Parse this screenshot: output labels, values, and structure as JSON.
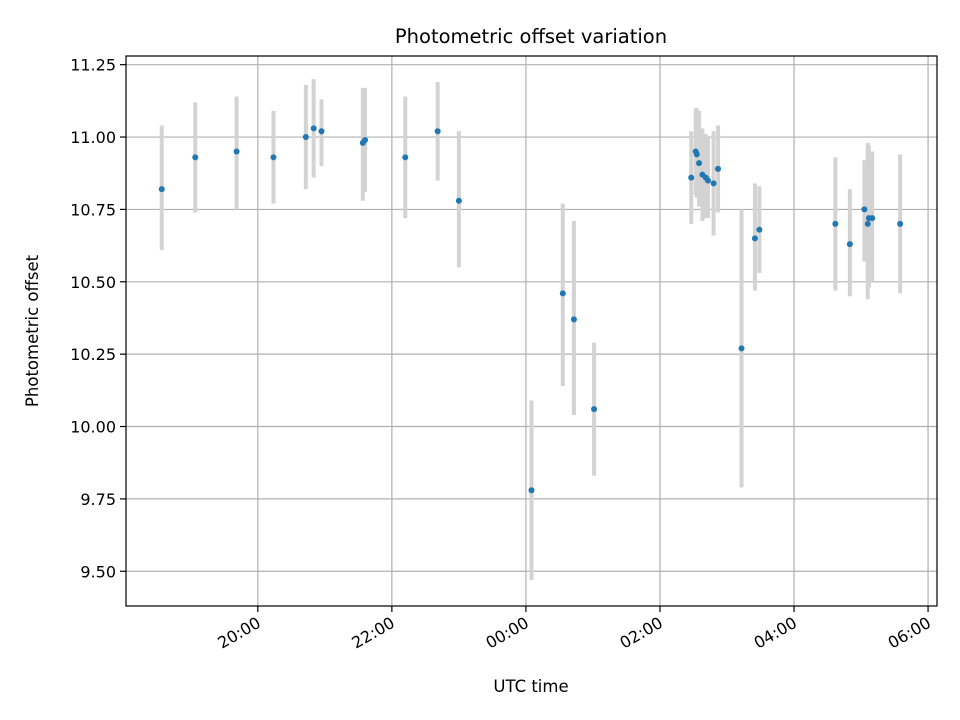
{
  "chart_data": {
    "type": "scatter",
    "title": "Photometric offset variation",
    "xlabel": "UTC time",
    "ylabel": "Photometric offset",
    "grid": true,
    "x_axis_format": "HH:MM",
    "xlim": [
      "18:02",
      "06:08"
    ],
    "ylim": [
      9.38,
      11.28
    ],
    "x_ticks": [
      "20:00",
      "22:00",
      "00:00",
      "02:00",
      "04:00",
      "06:00"
    ],
    "y_ticks": [
      "9.50",
      "9.75",
      "10.00",
      "10.25",
      "10.50",
      "10.75",
      "11.00",
      "11.25"
    ],
    "colors": {
      "point": "#1f77b4",
      "errorbar": "#d3d3d3",
      "grid": "#b0b0b0"
    },
    "series": [
      {
        "points": [
          {
            "x": "18:34",
            "y": 10.82,
            "ylow": 10.61,
            "yhigh": 11.04
          },
          {
            "x": "19:04",
            "y": 10.93,
            "ylow": 10.74,
            "yhigh": 11.12
          },
          {
            "x": "19:41",
            "y": 10.95,
            "ylow": 10.75,
            "yhigh": 11.14
          },
          {
            "x": "20:14",
            "y": 10.93,
            "ylow": 10.77,
            "yhigh": 11.09
          },
          {
            "x": "20:43",
            "y": 11.0,
            "ylow": 10.82,
            "yhigh": 11.18
          },
          {
            "x": "20:50",
            "y": 11.03,
            "ylow": 10.86,
            "yhigh": 11.2
          },
          {
            "x": "20:57",
            "y": 11.02,
            "ylow": 10.9,
            "yhigh": 11.13
          },
          {
            "x": "21:34",
            "y": 10.98,
            "ylow": 10.78,
            "yhigh": 11.17
          },
          {
            "x": "21:36",
            "y": 10.99,
            "ylow": 10.81,
            "yhigh": 11.17
          },
          {
            "x": "22:12",
            "y": 10.93,
            "ylow": 10.72,
            "yhigh": 11.14
          },
          {
            "x": "22:41",
            "y": 11.02,
            "ylow": 10.85,
            "yhigh": 11.19
          },
          {
            "x": "23:00",
            "y": 10.78,
            "ylow": 10.55,
            "yhigh": 11.02
          },
          {
            "x": "00:05",
            "y": 9.78,
            "ylow": 9.47,
            "yhigh": 10.09
          },
          {
            "x": "00:33",
            "y": 10.46,
            "ylow": 10.14,
            "yhigh": 10.77
          },
          {
            "x": "00:43",
            "y": 10.37,
            "ylow": 10.04,
            "yhigh": 10.71
          },
          {
            "x": "01:01",
            "y": 10.06,
            "ylow": 9.83,
            "yhigh": 10.29
          },
          {
            "x": "02:28",
            "y": 10.86,
            "ylow": 10.7,
            "yhigh": 11.02
          },
          {
            "x": "02:32",
            "y": 10.95,
            "ylow": 10.8,
            "yhigh": 11.1
          },
          {
            "x": "02:33",
            "y": 10.94,
            "ylow": 10.79,
            "yhigh": 11.1
          },
          {
            "x": "02:35",
            "y": 10.91,
            "ylow": 10.76,
            "yhigh": 11.09
          },
          {
            "x": "02:38",
            "y": 10.87,
            "ylow": 10.71,
            "yhigh": 11.03
          },
          {
            "x": "02:41",
            "y": 10.86,
            "ylow": 10.72,
            "yhigh": 11.01
          },
          {
            "x": "02:43",
            "y": 10.85,
            "ylow": 10.72,
            "yhigh": 11.0
          },
          {
            "x": "02:48",
            "y": 10.84,
            "ylow": 10.66,
            "yhigh": 11.02
          },
          {
            "x": "02:52",
            "y": 10.89,
            "ylow": 10.74,
            "yhigh": 11.04
          },
          {
            "x": "03:13",
            "y": 10.27,
            "ylow": 9.79,
            "yhigh": 10.75
          },
          {
            "x": "03:25",
            "y": 10.65,
            "ylow": 10.47,
            "yhigh": 10.84
          },
          {
            "x": "03:29",
            "y": 10.68,
            "ylow": 10.53,
            "yhigh": 10.83
          },
          {
            "x": "04:37",
            "y": 10.7,
            "ylow": 10.47,
            "yhigh": 10.93
          },
          {
            "x": "04:50",
            "y": 10.63,
            "ylow": 10.45,
            "yhigh": 10.82
          },
          {
            "x": "05:03",
            "y": 10.75,
            "ylow": 10.57,
            "yhigh": 10.92
          },
          {
            "x": "05:06",
            "y": 10.7,
            "ylow": 10.44,
            "yhigh": 10.98
          },
          {
            "x": "05:07",
            "y": 10.72,
            "ylow": 10.48,
            "yhigh": 10.97
          },
          {
            "x": "05:10",
            "y": 10.72,
            "ylow": 10.5,
            "yhigh": 10.95
          },
          {
            "x": "05:35",
            "y": 10.7,
            "ylow": 10.46,
            "yhigh": 10.94
          }
        ]
      }
    ]
  }
}
